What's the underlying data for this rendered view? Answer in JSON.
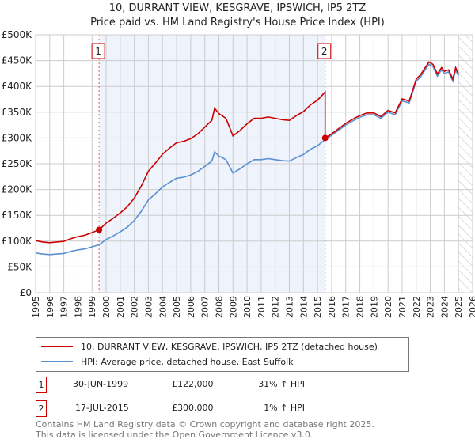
{
  "chart_data": {
    "type": "line",
    "title": "10, DURRANT VIEW, KESGRAVE, IPSWICH, IP5 2TZ",
    "subtitle": "Price paid vs. HM Land Registry's House Price Index (HPI)",
    "xlim": [
      1995,
      2026
    ],
    "ylim": [
      0,
      500000
    ],
    "x_ticks": [
      "1995",
      "1996",
      "1997",
      "1998",
      "1999",
      "2000",
      "2001",
      "2002",
      "2003",
      "2004",
      "2005",
      "2006",
      "2007",
      "2008",
      "2009",
      "2010",
      "2011",
      "2012",
      "2013",
      "2014",
      "2015",
      "2016",
      "2017",
      "2018",
      "2019",
      "2020",
      "2021",
      "2022",
      "2023",
      "2024",
      "2025",
      "2026"
    ],
    "y_ticks": [
      "£0",
      "£50K",
      "£100K",
      "£150K",
      "£200K",
      "£250K",
      "£300K",
      "£350K",
      "£400K",
      "£450K",
      "£500K"
    ],
    "colors": {
      "price": "#cc0000",
      "hpi": "#5b8fd0",
      "shade": "#eef3fc"
    },
    "hpi": {
      "x": [
        1995,
        1995.5,
        1996,
        1996.5,
        1997,
        1997.5,
        1998,
        1998.5,
        1999,
        1999.5,
        2000,
        2000.5,
        2001,
        2001.5,
        2002,
        2002.5,
        2003,
        2003.5,
        2004,
        2004.5,
        2005,
        2005.5,
        2006,
        2006.5,
        2007,
        2007.5,
        2007.7,
        2008,
        2008.5,
        2009,
        2009.5,
        2010,
        2010.5,
        2011,
        2011.5,
        2012,
        2012.5,
        2013,
        2013.5,
        2014,
        2014.5,
        2015,
        2015.54,
        2016,
        2016.5,
        2017,
        2017.5,
        2018,
        2018.5,
        2019,
        2019.5,
        2020,
        2020.5,
        2021,
        2021.5,
        2022,
        2022.3,
        2022.9,
        2023.2,
        2023.5,
        2023.8,
        2024,
        2024.3,
        2024.6,
        2024.8,
        2025
      ],
      "y": [
        77000,
        75000,
        74000,
        75000,
        76000,
        80000,
        83000,
        85000,
        89000,
        93000,
        103000,
        110000,
        118000,
        127000,
        140000,
        158000,
        180000,
        192000,
        205000,
        214000,
        222000,
        224000,
        228000,
        235000,
        245000,
        255000,
        273000,
        265000,
        258000,
        232000,
        240000,
        250000,
        258000,
        258000,
        260000,
        258000,
        256000,
        255000,
        262000,
        268000,
        278000,
        285000,
        297000,
        305000,
        315000,
        325000,
        333000,
        340000,
        345000,
        345000,
        338000,
        350000,
        345000,
        372000,
        368000,
        410000,
        418000,
        443000,
        438000,
        420000,
        432000,
        425000,
        428000,
        410000,
        432000,
        420000
      ]
    },
    "price_ratio_before_sale2": 1.31,
    "price_ratio_after_sale2": 1.01,
    "sales": [
      {
        "label": "1",
        "x": 1999.5,
        "y": 122000
      },
      {
        "label": "2",
        "x": 2015.54,
        "y": 300000
      }
    ],
    "forecast_start": 2025
  },
  "legend": {
    "price": "10, DURRANT VIEW, KESGRAVE, IPSWICH, IP5 2TZ (detached house)",
    "hpi": "HPI: Average price, detached house, East Suffolk"
  },
  "transactions": [
    {
      "num": "1",
      "date": "30-JUN-1999",
      "price": "£122,000",
      "hpi": "31% ↑ HPI"
    },
    {
      "num": "2",
      "date": "17-JUL-2015",
      "price": "£300,000",
      "hpi": "1% ↑ HPI"
    }
  ],
  "footer": {
    "line1": "Contains HM Land Registry data © Crown copyright and database right 2025.",
    "line2": "This data is licensed under the Open Government Licence v3.0."
  }
}
